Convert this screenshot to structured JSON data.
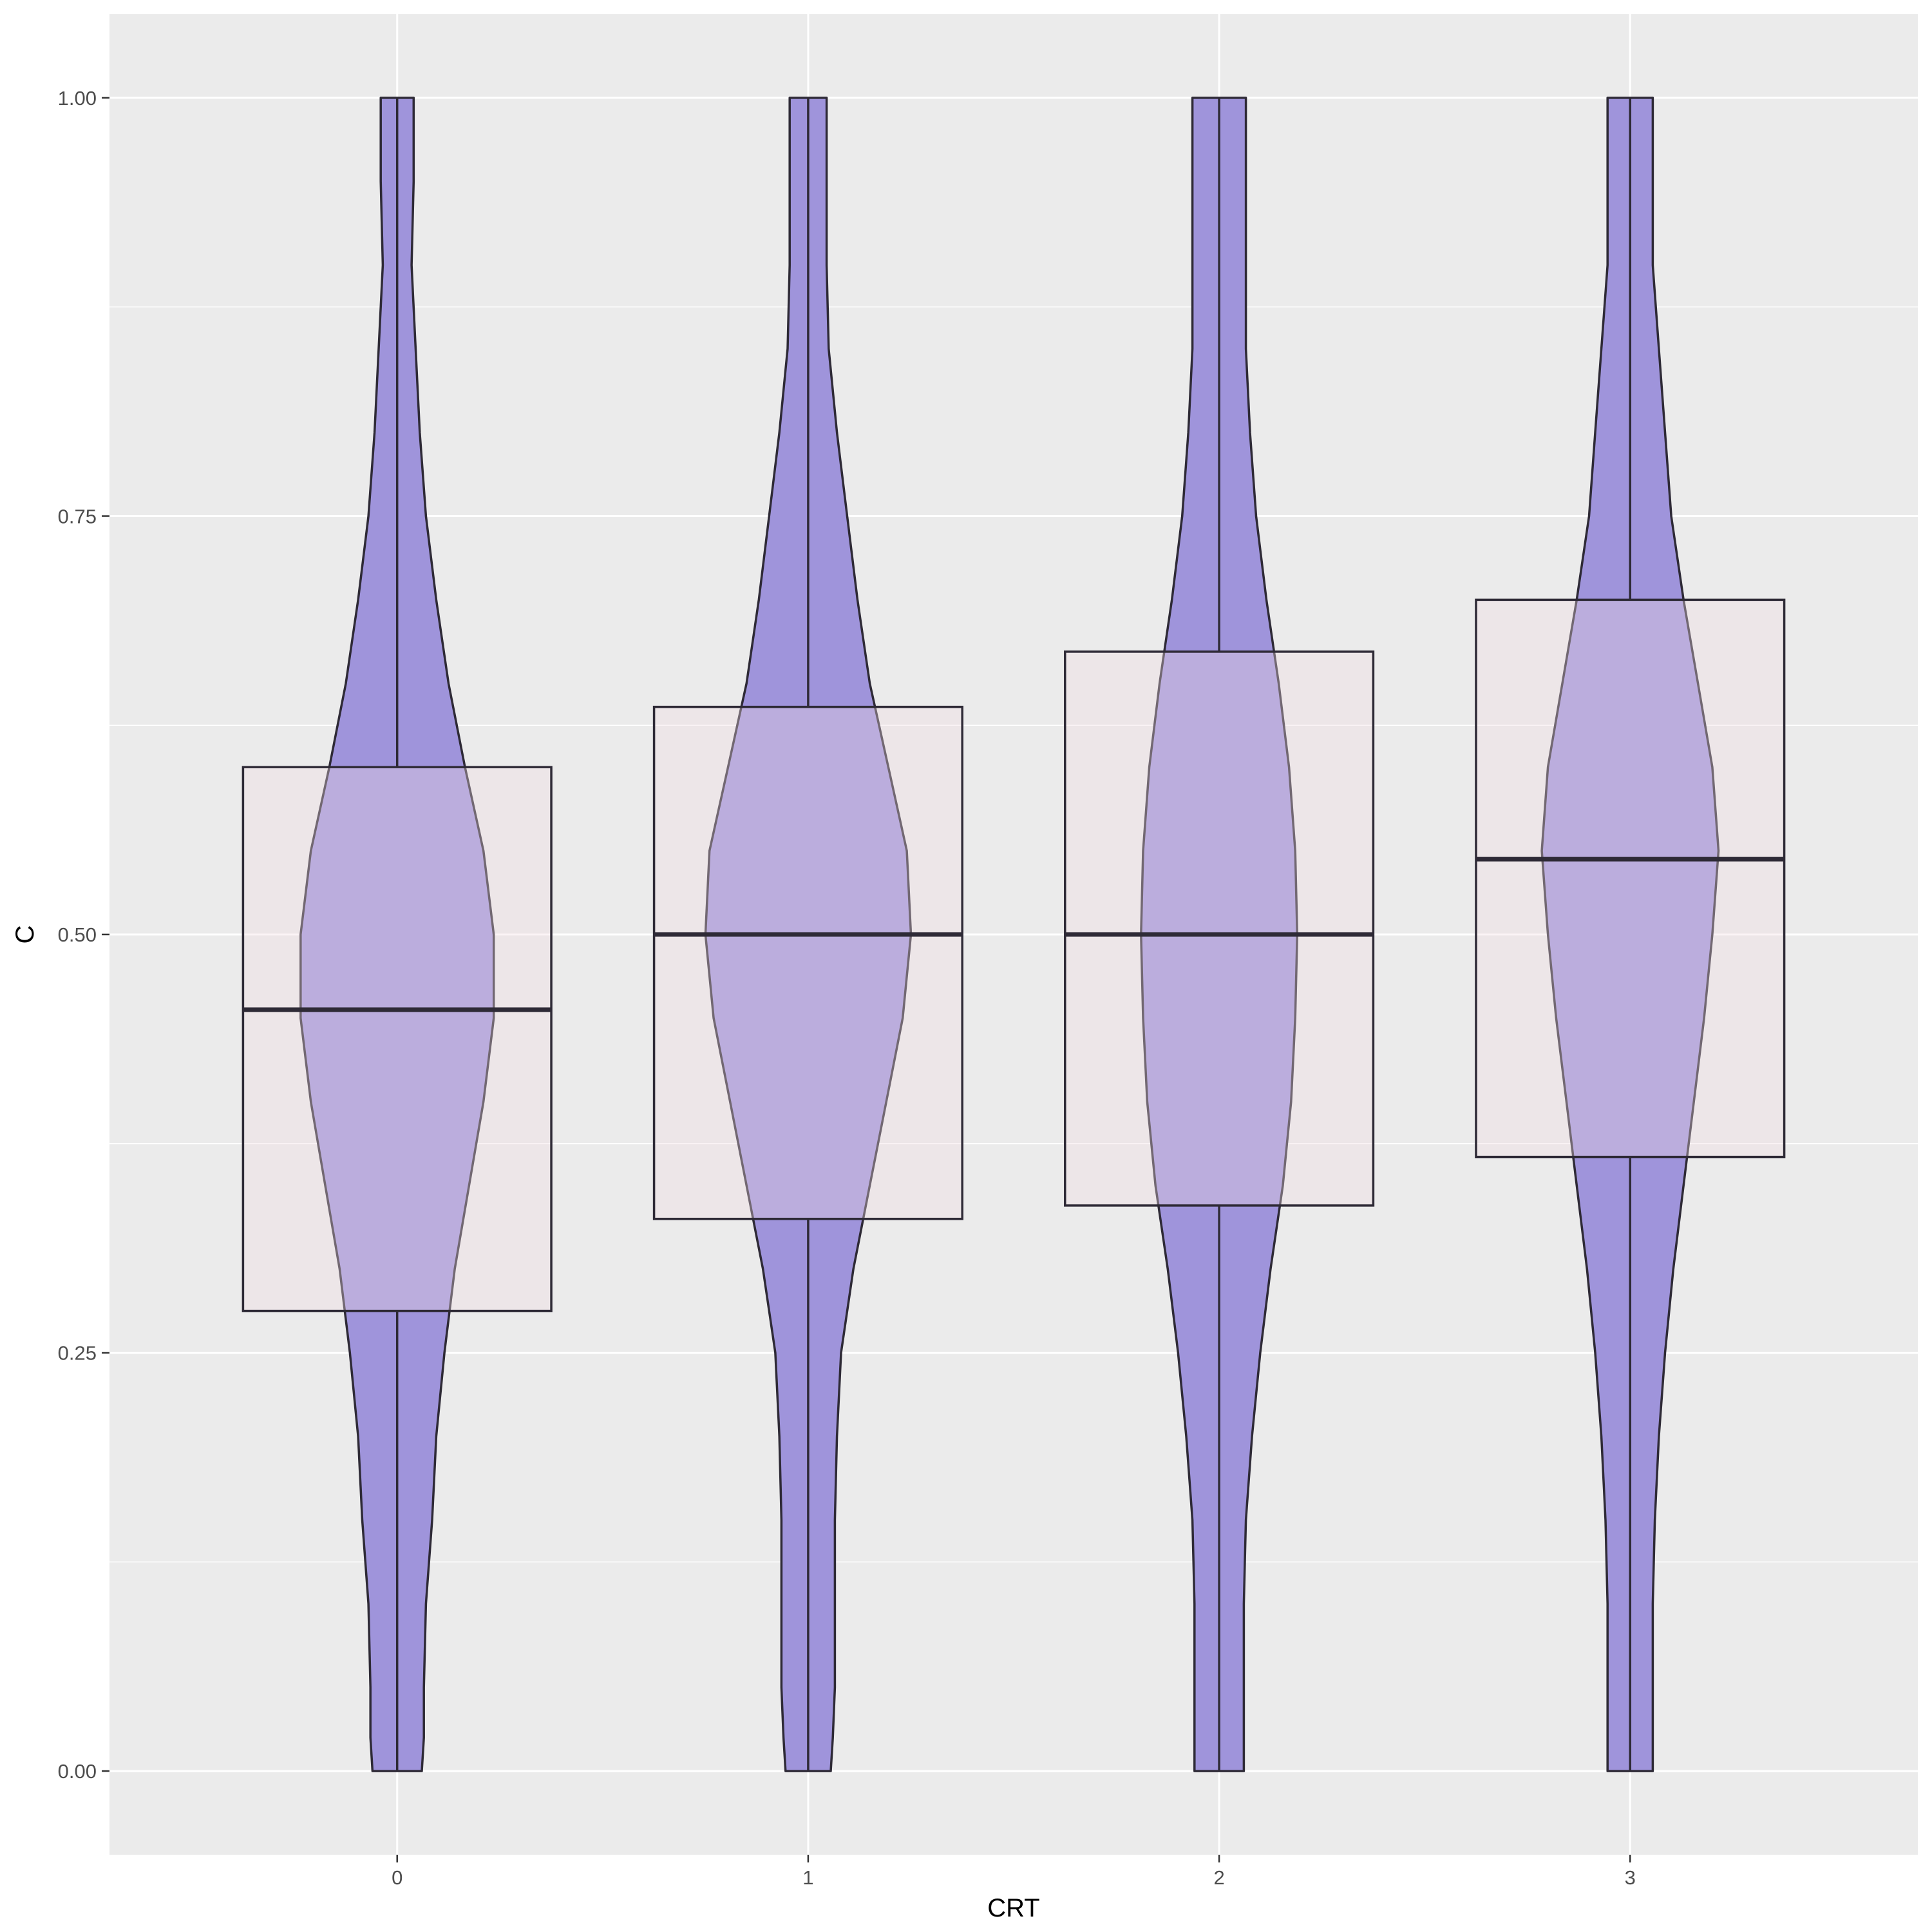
{
  "chart_data": {
    "type": "violin",
    "xlabel": "CRT",
    "ylabel": "C",
    "ylim": [
      -0.05,
      1.05
    ],
    "categories": [
      "0",
      "1",
      "2",
      "3"
    ],
    "y_ticks": [
      "0.00",
      "0.25",
      "0.50",
      "0.75",
      "1.00"
    ],
    "grid": true,
    "legend": "none",
    "colors": {
      "panel_background": "#ebebeb",
      "grid": "#ffffff",
      "violin_fill": "#9f94db",
      "box_fill": "#f2dde2",
      "outline": "#2e2a36"
    },
    "boxes": [
      {
        "category": "0",
        "q1": 0.275,
        "median": 0.455,
        "q3": 0.6,
        "ymin": 0.0,
        "ymax": 1.0
      },
      {
        "category": "1",
        "q1": 0.33,
        "median": 0.5,
        "q3": 0.636,
        "ymin": 0.0,
        "ymax": 1.0
      },
      {
        "category": "2",
        "q1": 0.338,
        "median": 0.5,
        "q3": 0.669,
        "ymin": 0.0,
        "ymax": 1.0
      },
      {
        "category": "3",
        "q1": 0.367,
        "median": 0.545,
        "q3": 0.7,
        "ymin": 0.0,
        "ymax": 1.0
      }
    ],
    "violins": [
      {
        "category": "0",
        "density": [
          [
            0,
            0.12
          ],
          [
            0.02,
            0.13
          ],
          [
            0.05,
            0.13
          ],
          [
            0.1,
            0.14
          ],
          [
            0.15,
            0.17
          ],
          [
            0.2,
            0.19
          ],
          [
            0.25,
            0.23
          ],
          [
            0.3,
            0.28
          ],
          [
            0.35,
            0.35
          ],
          [
            0.4,
            0.42
          ],
          [
            0.45,
            0.47
          ],
          [
            0.5,
            0.47
          ],
          [
            0.55,
            0.42
          ],
          [
            0.6,
            0.33
          ],
          [
            0.65,
            0.25
          ],
          [
            0.7,
            0.19
          ],
          [
            0.75,
            0.14
          ],
          [
            0.8,
            0.11
          ],
          [
            0.85,
            0.09
          ],
          [
            0.9,
            0.07
          ],
          [
            0.95,
            0.08
          ],
          [
            1.0,
            0.08
          ]
        ]
      },
      {
        "category": "1",
        "density": [
          [
            0,
            0.11
          ],
          [
            0.02,
            0.12
          ],
          [
            0.05,
            0.13
          ],
          [
            0.1,
            0.13
          ],
          [
            0.15,
            0.13
          ],
          [
            0.2,
            0.14
          ],
          [
            0.25,
            0.16
          ],
          [
            0.3,
            0.22
          ],
          [
            0.35,
            0.3
          ],
          [
            0.4,
            0.38
          ],
          [
            0.45,
            0.46
          ],
          [
            0.5,
            0.5
          ],
          [
            0.55,
            0.48
          ],
          [
            0.6,
            0.39
          ],
          [
            0.65,
            0.3
          ],
          [
            0.7,
            0.24
          ],
          [
            0.75,
            0.19
          ],
          [
            0.8,
            0.14
          ],
          [
            0.85,
            0.1
          ],
          [
            0.9,
            0.09
          ],
          [
            0.95,
            0.09
          ],
          [
            1.0,
            0.09
          ]
        ]
      },
      {
        "category": "2",
        "density": [
          [
            0,
            0.12
          ],
          [
            0.02,
            0.12
          ],
          [
            0.05,
            0.12
          ],
          [
            0.1,
            0.12
          ],
          [
            0.15,
            0.13
          ],
          [
            0.2,
            0.16
          ],
          [
            0.25,
            0.2
          ],
          [
            0.3,
            0.25
          ],
          [
            0.35,
            0.31
          ],
          [
            0.4,
            0.35
          ],
          [
            0.45,
            0.37
          ],
          [
            0.5,
            0.38
          ],
          [
            0.55,
            0.37
          ],
          [
            0.6,
            0.34
          ],
          [
            0.65,
            0.29
          ],
          [
            0.7,
            0.23
          ],
          [
            0.75,
            0.18
          ],
          [
            0.8,
            0.15
          ],
          [
            0.85,
            0.13
          ],
          [
            0.9,
            0.13
          ],
          [
            0.95,
            0.13
          ],
          [
            1.0,
            0.13
          ]
        ]
      },
      {
        "category": "3",
        "density": [
          [
            0,
            0.11
          ],
          [
            0.02,
            0.11
          ],
          [
            0.05,
            0.11
          ],
          [
            0.1,
            0.11
          ],
          [
            0.15,
            0.12
          ],
          [
            0.2,
            0.14
          ],
          [
            0.25,
            0.17
          ],
          [
            0.3,
            0.21
          ],
          [
            0.35,
            0.26
          ],
          [
            0.4,
            0.31
          ],
          [
            0.45,
            0.36
          ],
          [
            0.5,
            0.4
          ],
          [
            0.55,
            0.43
          ],
          [
            0.6,
            0.4
          ],
          [
            0.65,
            0.33
          ],
          [
            0.7,
            0.26
          ],
          [
            0.75,
            0.2
          ],
          [
            0.8,
            0.17
          ],
          [
            0.85,
            0.14
          ],
          [
            0.9,
            0.11
          ],
          [
            0.95,
            0.11
          ],
          [
            1.0,
            0.11
          ]
        ]
      }
    ]
  }
}
